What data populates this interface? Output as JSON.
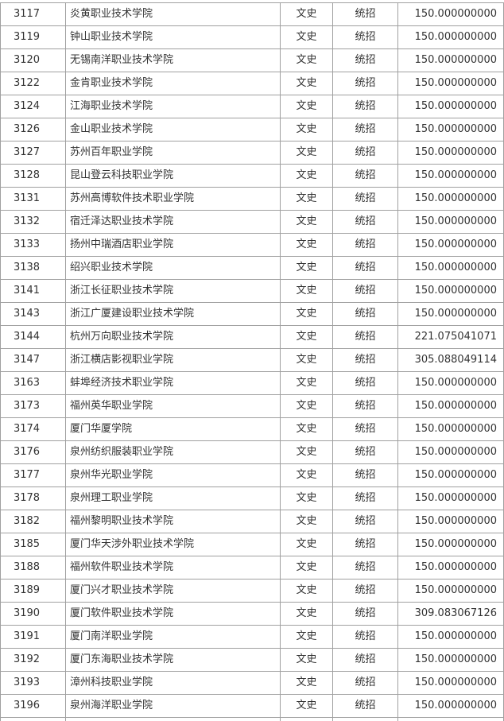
{
  "table": {
    "rows": [
      [
        "3117",
        "炎黄职业技术学院",
        "文史",
        "统招",
        "150.000000000"
      ],
      [
        "3119",
        "钟山职业技术学院",
        "文史",
        "统招",
        "150.000000000"
      ],
      [
        "3120",
        "无锡南洋职业技术学院",
        "文史",
        "统招",
        "150.000000000"
      ],
      [
        "3122",
        "金肯职业技术学院",
        "文史",
        "统招",
        "150.000000000"
      ],
      [
        "3124",
        "江海职业技术学院",
        "文史",
        "统招",
        "150.000000000"
      ],
      [
        "3126",
        "金山职业技术学院",
        "文史",
        "统招",
        "150.000000000"
      ],
      [
        "3127",
        "苏州百年职业学院",
        "文史",
        "统招",
        "150.000000000"
      ],
      [
        "3128",
        "昆山登云科技职业学院",
        "文史",
        "统招",
        "150.000000000"
      ],
      [
        "3131",
        "苏州高博软件技术职业学院",
        "文史",
        "统招",
        "150.000000000"
      ],
      [
        "3132",
        "宿迁泽达职业技术学院",
        "文史",
        "统招",
        "150.000000000"
      ],
      [
        "3133",
        "扬州中瑞酒店职业学院",
        "文史",
        "统招",
        "150.000000000"
      ],
      [
        "3138",
        "绍兴职业技术学院",
        "文史",
        "统招",
        "150.000000000"
      ],
      [
        "3141",
        "浙江长征职业技术学院",
        "文史",
        "统招",
        "150.000000000"
      ],
      [
        "3143",
        "浙江广厦建设职业技术学院",
        "文史",
        "统招",
        "150.000000000"
      ],
      [
        "3144",
        "杭州万向职业技术学院",
        "文史",
        "统招",
        "221.075041071"
      ],
      [
        "3147",
        "浙江横店影视职业学院",
        "文史",
        "统招",
        "305.088049114"
      ],
      [
        "3163",
        "蚌埠经济技术职业学院",
        "文史",
        "统招",
        "150.000000000"
      ],
      [
        "3173",
        "福州英华职业学院",
        "文史",
        "统招",
        "150.000000000"
      ],
      [
        "3174",
        "厦门华厦学院",
        "文史",
        "统招",
        "150.000000000"
      ],
      [
        "3176",
        "泉州纺织服装职业学院",
        "文史",
        "统招",
        "150.000000000"
      ],
      [
        "3177",
        "泉州华光职业学院",
        "文史",
        "统招",
        "150.000000000"
      ],
      [
        "3178",
        "泉州理工职业学院",
        "文史",
        "统招",
        "150.000000000"
      ],
      [
        "3182",
        "福州黎明职业技术学院",
        "文史",
        "统招",
        "150.000000000"
      ],
      [
        "3185",
        "厦门华天涉外职业技术学院",
        "文史",
        "统招",
        "150.000000000"
      ],
      [
        "3188",
        "福州软件职业技术学院",
        "文史",
        "统招",
        "150.000000000"
      ],
      [
        "3189",
        "厦门兴才职业技术学院",
        "文史",
        "统招",
        "150.000000000"
      ],
      [
        "3190",
        "厦门软件职业技术学院",
        "文史",
        "统招",
        "309.083067126"
      ],
      [
        "3191",
        "厦门南洋职业学院",
        "文史",
        "统招",
        "150.000000000"
      ],
      [
        "3192",
        "厦门东海职业技术学院",
        "文史",
        "统招",
        "150.000000000"
      ],
      [
        "3193",
        "漳州科技职业学院",
        "文史",
        "统招",
        "150.000000000"
      ],
      [
        "3196",
        "泉州海洋职业学院",
        "文史",
        "统招",
        "150.000000000"
      ]
    ]
  }
}
